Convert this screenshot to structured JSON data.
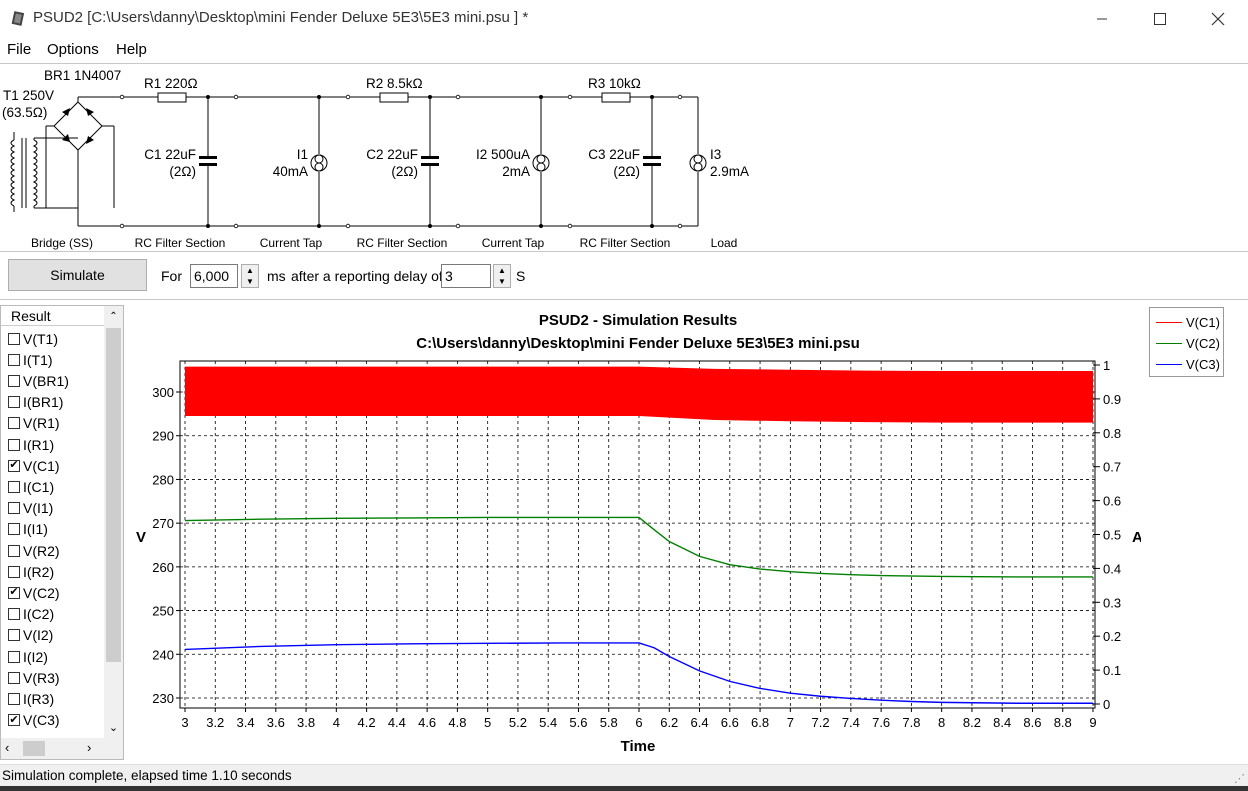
{
  "window": {
    "title": "PSUD2  [C:\\Users\\danny\\Desktop\\mini Fender Deluxe 5E3\\5E3 mini.psu ] *",
    "minimize_icon": "minimize-icon",
    "maximize_icon": "maximize-icon",
    "close_icon": "close-icon"
  },
  "menu": {
    "file": "File",
    "options": "Options",
    "help": "Help"
  },
  "circuit": {
    "transformer_label": "T1 250V",
    "transformer_resistance": "(63.5Ω)",
    "bridge_label": "BR1 1N4007",
    "r1": "R1 220Ω",
    "r2": "R2 8.5kΩ",
    "r3": "R3 10kΩ",
    "c1_name": "C1 22uF",
    "c1_esr": "(2Ω)",
    "c2_name": "C2 22uF",
    "c2_esr": "(2Ω)",
    "c3_name": "C3 22uF",
    "c3_esr": "(2Ω)",
    "i1_name": "I1",
    "i1_value": "40mA",
    "i2_name": "I2 500uA",
    "i2_value": "2mA",
    "i3_name": "I3",
    "i3_value": "2.9mA",
    "sections": [
      "Bridge (SS)",
      "RC Filter Section",
      "Current Tap",
      "RC Filter Section",
      "Current Tap",
      "RC Filter Section",
      "Load"
    ]
  },
  "simulate": {
    "button_label": "Simulate",
    "for_label": "For",
    "duration_value": "6,000",
    "ms_label": "ms",
    "delay_label": "after a reporting delay of",
    "delay_value": "3",
    "s_label": "S"
  },
  "results": {
    "header": "Result",
    "items": [
      {
        "label": "V(T1)",
        "checked": false
      },
      {
        "label": "I(T1)",
        "checked": false
      },
      {
        "label": "V(BR1)",
        "checked": false
      },
      {
        "label": "I(BR1)",
        "checked": false
      },
      {
        "label": "V(R1)",
        "checked": false
      },
      {
        "label": "I(R1)",
        "checked": false
      },
      {
        "label": "V(C1)",
        "checked": true
      },
      {
        "label": "I(C1)",
        "checked": false
      },
      {
        "label": "V(I1)",
        "checked": false
      },
      {
        "label": "I(I1)",
        "checked": false
      },
      {
        "label": "V(R2)",
        "checked": false
      },
      {
        "label": "I(R2)",
        "checked": false
      },
      {
        "label": "V(C2)",
        "checked": true
      },
      {
        "label": "I(C2)",
        "checked": false
      },
      {
        "label": "V(I2)",
        "checked": false
      },
      {
        "label": "I(I2)",
        "checked": false
      },
      {
        "label": "V(R3)",
        "checked": false
      },
      {
        "label": "I(R3)",
        "checked": false
      },
      {
        "label": "V(C3)",
        "checked": true
      }
    ]
  },
  "chart_data": {
    "type": "line",
    "title": "PSUD2 - Simulation Results",
    "subtitle": "C:\\Users\\danny\\Desktop\\mini Fender Deluxe 5E3\\5E3 mini.psu",
    "xlabel": "Time",
    "ylabel": "V",
    "y2label": "A",
    "xlim": [
      3,
      9
    ],
    "ylim": [
      228,
      306
    ],
    "y2lim": [
      0,
      1
    ],
    "xticks": [
      "3",
      "3.2",
      "3.4",
      "3.6",
      "3.8",
      "4",
      "4.2",
      "4.4",
      "4.6",
      "4.8",
      "5",
      "5.2",
      "5.4",
      "5.6",
      "5.8",
      "6",
      "6.2",
      "6.4",
      "6.6",
      "6.8",
      "7",
      "7.2",
      "7.4",
      "7.6",
      "7.8",
      "8",
      "8.2",
      "8.4",
      "8.6",
      "8.8",
      "9"
    ],
    "yticks": [
      "230",
      "240",
      "250",
      "260",
      "270",
      "280",
      "290",
      "300"
    ],
    "y2ticks": [
      "0",
      "0.1",
      "0.2",
      "0.3",
      "0.4",
      "0.5",
      "0.6",
      "0.7",
      "0.8",
      "0.9",
      "1"
    ],
    "grid": true,
    "legend_position": "right",
    "series": [
      {
        "name": "V(C1)",
        "color": "#ff0000",
        "ripple": true,
        "x": [
          3,
          6,
          6.5,
          7,
          7.5,
          8,
          9
        ],
        "upper": [
          305.8,
          305.8,
          305.3,
          305.1,
          304.9,
          304.8,
          304.8
        ],
        "lower": [
          294.5,
          294.5,
          293.6,
          293.3,
          293.1,
          293.0,
          293.0
        ]
      },
      {
        "name": "V(C2)",
        "color": "#008000",
        "x": [
          3,
          3.5,
          4,
          4.5,
          5,
          5.5,
          6,
          6.1,
          6.2,
          6.4,
          6.6,
          6.8,
          7,
          7.2,
          7.4,
          7.6,
          8,
          8.5,
          9
        ],
        "values": [
          270.6,
          270.9,
          271.1,
          271.2,
          271.3,
          271.3,
          271.3,
          268.5,
          265.8,
          262.4,
          260.5,
          259.5,
          258.9,
          258.5,
          258.2,
          258.0,
          257.8,
          257.7,
          257.7
        ]
      },
      {
        "name": "V(C3)",
        "color": "#0000ff",
        "x": [
          3,
          3.5,
          4,
          4.5,
          5,
          5.5,
          6,
          6.1,
          6.2,
          6.4,
          6.6,
          6.8,
          7,
          7.2,
          7.4,
          7.6,
          7.8,
          8,
          8.5,
          9
        ],
        "values": [
          241.1,
          241.8,
          242.2,
          242.4,
          242.5,
          242.6,
          242.6,
          241.5,
          239.5,
          236.2,
          233.8,
          232.2,
          231.1,
          230.4,
          229.9,
          229.5,
          229.2,
          229.0,
          228.8,
          228.8
        ]
      }
    ]
  },
  "status": {
    "text": "Simulation complete, elapsed time 1.10 seconds"
  }
}
